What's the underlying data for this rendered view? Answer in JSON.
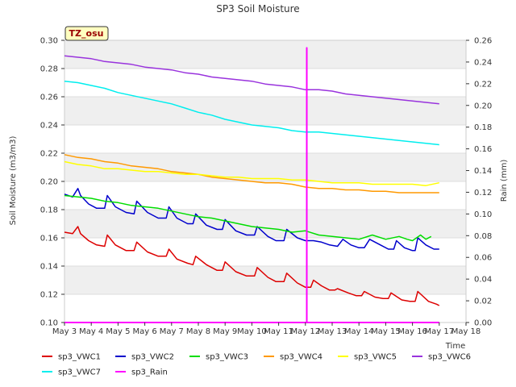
{
  "chart_data": {
    "type": "line",
    "title": "SP3 Soil Moisture",
    "badge": "TZ_osu",
    "xlabel": "Time",
    "ylabel": "Soil Moisture (m3/m3)",
    "y2label": "Rain (mm)",
    "xlim": [
      3,
      18
    ],
    "ylim": [
      0.1,
      0.3
    ],
    "y2lim": [
      0.0,
      0.26
    ],
    "x_ticks": [
      3,
      4,
      5,
      6,
      7,
      8,
      9,
      10,
      11,
      12,
      13,
      14,
      15,
      16,
      17,
      18
    ],
    "x_tick_labels": [
      "May 3",
      "May 4",
      "May 5",
      "May 6",
      "May 7",
      "May 8",
      "May 9",
      "May 10",
      "May 11",
      "May 12",
      "May 13",
      "May 14",
      "May 15",
      "May 16",
      "May 17",
      "May 18"
    ],
    "y_ticks": [
      0.1,
      0.12,
      0.14,
      0.16,
      0.18,
      0.2,
      0.22,
      0.24,
      0.26,
      0.28,
      0.3
    ],
    "y_tick_labels": [
      "0.10",
      "0.12",
      "0.14",
      "0.16",
      "0.18",
      "0.20",
      "0.22",
      "0.24",
      "0.26",
      "0.28",
      "0.30"
    ],
    "y2_ticks": [
      0.0,
      0.02,
      0.04,
      0.06,
      0.08,
      0.1,
      0.12,
      0.14,
      0.16,
      0.18,
      0.2,
      0.22,
      0.24,
      0.26
    ],
    "y2_tick_labels": [
      "0.00",
      "0.02",
      "0.04",
      "0.06",
      "0.08",
      "0.10",
      "0.12",
      "0.14",
      "0.16",
      "0.18",
      "0.20",
      "0.22",
      "0.24",
      "0.26"
    ],
    "grid": "horizontal bands",
    "series": [
      {
        "name": "sp3_VWC1",
        "color": "#dd0000",
        "axis": "left",
        "x": [
          3.0,
          3.3,
          3.5,
          3.6,
          3.9,
          4.2,
          4.5,
          4.6,
          4.9,
          5.3,
          5.6,
          5.7,
          6.1,
          6.5,
          6.8,
          6.9,
          7.2,
          7.6,
          7.8,
          7.9,
          8.3,
          8.7,
          8.9,
          9.0,
          9.4,
          9.8,
          10.1,
          10.2,
          10.6,
          10.9,
          11.2,
          11.3,
          11.7,
          12.0,
          12.2,
          12.3,
          12.6,
          12.9,
          13.1,
          13.2,
          13.6,
          13.9,
          14.1,
          14.2,
          14.6,
          14.9,
          15.1,
          15.2,
          15.6,
          15.9,
          16.1,
          16.2,
          16.6,
          16.9,
          17.0
        ],
        "y": [
          0.164,
          0.163,
          0.168,
          0.163,
          0.158,
          0.155,
          0.154,
          0.162,
          0.155,
          0.151,
          0.151,
          0.157,
          0.15,
          0.147,
          0.147,
          0.152,
          0.145,
          0.142,
          0.141,
          0.147,
          0.141,
          0.137,
          0.137,
          0.143,
          0.136,
          0.133,
          0.133,
          0.139,
          0.132,
          0.129,
          0.129,
          0.135,
          0.128,
          0.125,
          0.125,
          0.13,
          0.126,
          0.123,
          0.123,
          0.124,
          0.121,
          0.119,
          0.119,
          0.122,
          0.118,
          0.117,
          0.117,
          0.121,
          0.116,
          0.115,
          0.115,
          0.122,
          0.115,
          0.113,
          0.112
        ]
      },
      {
        "name": "sp3_VWC2",
        "color": "#0000cc",
        "axis": "left",
        "x": [
          3.0,
          3.3,
          3.5,
          3.6,
          3.9,
          4.2,
          4.5,
          4.6,
          4.9,
          5.3,
          5.6,
          5.7,
          6.1,
          6.5,
          6.8,
          6.9,
          7.2,
          7.6,
          7.8,
          7.9,
          8.3,
          8.7,
          8.9,
          9.0,
          9.4,
          9.8,
          10.1,
          10.2,
          10.6,
          10.9,
          11.2,
          11.3,
          11.7,
          12.0,
          12.2,
          12.3,
          12.6,
          12.9,
          13.2,
          13.4,
          13.7,
          14.0,
          14.2,
          14.4,
          14.8,
          15.1,
          15.3,
          15.4,
          15.7,
          16.0,
          16.1,
          16.2,
          16.5,
          16.8,
          17.0
        ],
        "y": [
          0.191,
          0.189,
          0.195,
          0.19,
          0.184,
          0.181,
          0.181,
          0.19,
          0.182,
          0.178,
          0.177,
          0.186,
          0.178,
          0.174,
          0.174,
          0.182,
          0.174,
          0.17,
          0.17,
          0.177,
          0.169,
          0.166,
          0.166,
          0.173,
          0.165,
          0.162,
          0.162,
          0.168,
          0.161,
          0.158,
          0.158,
          0.166,
          0.16,
          0.158,
          0.158,
          0.158,
          0.157,
          0.155,
          0.154,
          0.159,
          0.155,
          0.153,
          0.153,
          0.159,
          0.155,
          0.152,
          0.152,
          0.158,
          0.153,
          0.151,
          0.151,
          0.16,
          0.155,
          0.152,
          0.152
        ]
      },
      {
        "name": "sp3_VWC3",
        "color": "#00dd00",
        "axis": "left",
        "x": [
          3.0,
          3.5,
          4.0,
          4.5,
          5.0,
          5.5,
          6.0,
          6.5,
          7.0,
          7.5,
          8.0,
          8.5,
          9.0,
          9.5,
          10.0,
          10.5,
          11.0,
          11.5,
          12.0,
          12.5,
          13.0,
          13.5,
          14.0,
          14.5,
          15.0,
          15.5,
          15.8,
          16.0,
          16.3,
          16.5,
          16.7
        ],
        "y": [
          0.19,
          0.189,
          0.188,
          0.186,
          0.185,
          0.183,
          0.182,
          0.181,
          0.179,
          0.177,
          0.175,
          0.174,
          0.172,
          0.17,
          0.168,
          0.167,
          0.166,
          0.164,
          0.165,
          0.162,
          0.161,
          0.16,
          0.159,
          0.162,
          0.159,
          0.161,
          0.159,
          0.158,
          0.162,
          0.159,
          0.161
        ]
      },
      {
        "name": "sp3_VWC4",
        "color": "#ff9900",
        "axis": "left",
        "x": [
          3.0,
          3.5,
          4.0,
          4.5,
          5.0,
          5.5,
          6.0,
          6.5,
          7.0,
          7.5,
          8.0,
          8.5,
          9.0,
          9.5,
          10.0,
          10.5,
          11.0,
          11.5,
          12.0,
          12.5,
          13.0,
          13.5,
          14.0,
          14.5,
          15.0,
          15.5,
          16.0,
          16.5,
          17.0
        ],
        "y": [
          0.219,
          0.217,
          0.216,
          0.214,
          0.213,
          0.211,
          0.21,
          0.209,
          0.207,
          0.206,
          0.205,
          0.203,
          0.202,
          0.201,
          0.2,
          0.199,
          0.199,
          0.198,
          0.196,
          0.195,
          0.195,
          0.194,
          0.194,
          0.193,
          0.193,
          0.192,
          0.192,
          0.192,
          0.192
        ]
      },
      {
        "name": "sp3_VWC5",
        "color": "#ffff00",
        "axis": "left",
        "x": [
          3.0,
          3.5,
          4.0,
          4.5,
          5.0,
          5.5,
          6.0,
          6.5,
          7.0,
          7.5,
          8.0,
          8.5,
          9.0,
          9.5,
          10.0,
          10.5,
          11.0,
          11.5,
          12.0,
          12.5,
          13.0,
          13.5,
          14.0,
          14.5,
          15.0,
          15.5,
          16.0,
          16.5,
          17.0
        ],
        "y": [
          0.214,
          0.212,
          0.211,
          0.209,
          0.209,
          0.208,
          0.207,
          0.207,
          0.206,
          0.205,
          0.205,
          0.204,
          0.203,
          0.203,
          0.202,
          0.202,
          0.202,
          0.201,
          0.201,
          0.2,
          0.199,
          0.199,
          0.199,
          0.198,
          0.198,
          0.198,
          0.198,
          0.197,
          0.199
        ]
      },
      {
        "name": "sp3_VWC6",
        "color": "#9933dd",
        "axis": "left",
        "x": [
          3.0,
          3.5,
          4.0,
          4.5,
          5.0,
          5.5,
          6.0,
          6.5,
          7.0,
          7.5,
          8.0,
          8.5,
          9.0,
          9.5,
          10.0,
          10.5,
          11.0,
          11.5,
          12.0,
          12.5,
          13.0,
          13.5,
          14.0,
          14.5,
          15.0,
          15.5,
          16.0,
          16.5,
          17.0
        ],
        "y": [
          0.289,
          0.288,
          0.287,
          0.285,
          0.284,
          0.283,
          0.281,
          0.28,
          0.279,
          0.277,
          0.276,
          0.274,
          0.273,
          0.272,
          0.271,
          0.269,
          0.268,
          0.267,
          0.265,
          0.265,
          0.264,
          0.262,
          0.261,
          0.26,
          0.259,
          0.258,
          0.257,
          0.256,
          0.255
        ]
      },
      {
        "name": "sp3_VWC7",
        "color": "#00eeee",
        "axis": "left",
        "x": [
          3.0,
          3.5,
          4.0,
          4.5,
          5.0,
          5.5,
          6.0,
          6.5,
          7.0,
          7.5,
          8.0,
          8.5,
          9.0,
          9.5,
          10.0,
          10.5,
          11.0,
          11.5,
          12.0,
          12.5,
          13.0,
          13.5,
          14.0,
          14.5,
          15.0,
          15.5,
          16.0,
          16.5,
          17.0
        ],
        "y": [
          0.271,
          0.27,
          0.268,
          0.266,
          0.263,
          0.261,
          0.259,
          0.257,
          0.255,
          0.252,
          0.249,
          0.247,
          0.244,
          0.242,
          0.24,
          0.239,
          0.238,
          0.236,
          0.235,
          0.235,
          0.234,
          0.233,
          0.232,
          0.231,
          0.23,
          0.229,
          0.228,
          0.227,
          0.226
        ]
      },
      {
        "name": "sp3_Rain",
        "color": "#ff00ff",
        "axis": "right",
        "x": [
          3.0,
          12.05,
          12.05,
          12.05,
          12.09,
          12.09,
          17.0
        ],
        "y": [
          0.0,
          0.0,
          0.253,
          0.0,
          0.0,
          0.0,
          0.0
        ]
      }
    ],
    "legend": [
      "sp3_VWC1",
      "sp3_VWC2",
      "sp3_VWC3",
      "sp3_VWC4",
      "sp3_VWC5",
      "sp3_VWC6",
      "sp3_VWC7",
      "sp3_Rain"
    ]
  }
}
